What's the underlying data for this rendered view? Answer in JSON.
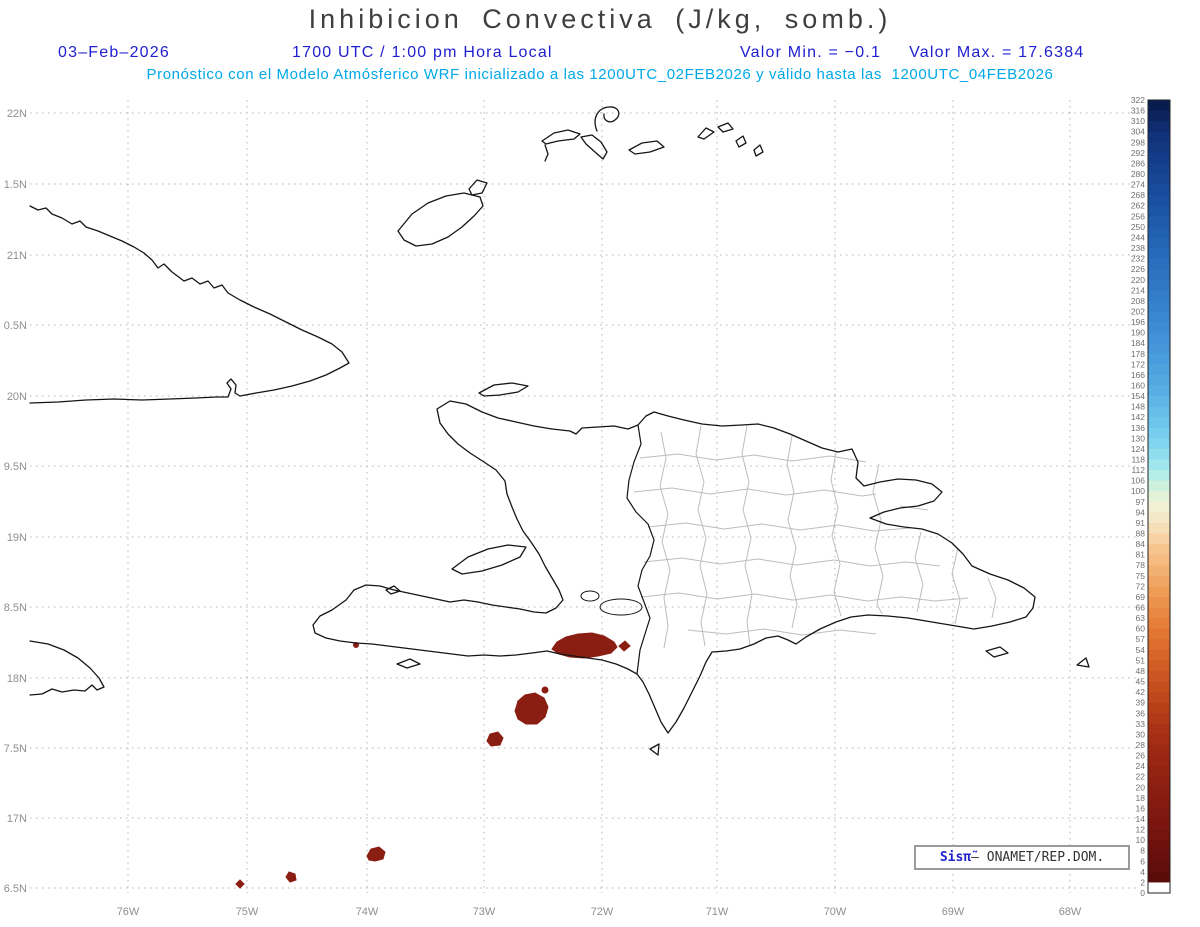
{
  "header": {
    "title": "Inhibicion Convectiva (J/kg, somb.)",
    "date": "03–Feb–2026",
    "time": "1700 UTC / 1:00 pm Hora Local",
    "min_label": "Valor Min. = −0.1",
    "max_label": "Valor Max. = 17.6384",
    "model_line": "Pronóstico con el Modelo Atmósferico WRF inicializado a las 1200UTC_02FEB2026 y válido hasta las  1200UTC_04FEB2026"
  },
  "axes": {
    "lat_ticks": [
      "22N",
      "1.5N",
      "21N",
      "0.5N",
      "20N",
      "9.5N",
      "19N",
      "8.5N",
      "18N",
      "7.5N",
      "17N",
      "6.5N"
    ],
    "lon_ticks": [
      "76W",
      "75W",
      "74W",
      "73W",
      "72W",
      "71W",
      "70W",
      "69W",
      "68W"
    ]
  },
  "colorbar": {
    "ticks": [
      322,
      316,
      310,
      304,
      298,
      292,
      286,
      280,
      274,
      268,
      262,
      256,
      250,
      244,
      238,
      232,
      226,
      220,
      214,
      208,
      202,
      196,
      190,
      184,
      178,
      172,
      166,
      160,
      154,
      148,
      142,
      136,
      130,
      124,
      118,
      112,
      106,
      100,
      97,
      94,
      91,
      88,
      84,
      81,
      78,
      75,
      72,
      69,
      66,
      63,
      60,
      57,
      54,
      51,
      48,
      45,
      42,
      39,
      36,
      33,
      30,
      28,
      26,
      24,
      22,
      20,
      18,
      16,
      14,
      12,
      10,
      8,
      6,
      4,
      2,
      0
    ],
    "white_below": 2,
    "stops": [
      [
        2,
        "#560b0b"
      ],
      [
        8,
        "#6b100d"
      ],
      [
        14,
        "#7d170f"
      ],
      [
        20,
        "#8b1e12"
      ],
      [
        26,
        "#9a2713"
      ],
      [
        30,
        "#a62f15"
      ],
      [
        36,
        "#b43c18"
      ],
      [
        42,
        "#c24a1c"
      ],
      [
        48,
        "#cf5922"
      ],
      [
        54,
        "#da682a"
      ],
      [
        60,
        "#e37a35"
      ],
      [
        66,
        "#ea8d46"
      ],
      [
        72,
        "#f0a15c"
      ],
      [
        78,
        "#f4b678"
      ],
      [
        84,
        "#f6ca96"
      ],
      [
        88,
        "#f6d9ae"
      ],
      [
        91,
        "#f5e3c0"
      ],
      [
        94,
        "#f3ecd0"
      ],
      [
        97,
        "#eef3d8"
      ],
      [
        100,
        "#d9f2d8"
      ],
      [
        106,
        "#c0efe2"
      ],
      [
        112,
        "#a9ebeb"
      ],
      [
        118,
        "#96e3ee"
      ],
      [
        124,
        "#86d9ee"
      ],
      [
        136,
        "#72c9ec"
      ],
      [
        148,
        "#62bae8"
      ],
      [
        160,
        "#55abe2"
      ],
      [
        178,
        "#479adb"
      ],
      [
        196,
        "#3b89d2"
      ],
      [
        214,
        "#317ac8"
      ],
      [
        232,
        "#286bbc"
      ],
      [
        250,
        "#205cae"
      ],
      [
        268,
        "#194d9e"
      ],
      [
        286,
        "#143f8c"
      ],
      [
        304,
        "#0f3078"
      ],
      [
        316,
        "#0a2055"
      ],
      [
        322,
        "#081747"
      ]
    ]
  },
  "credit": {
    "sis": "Sis",
    "pi": "π̃",
    "dash": "– ",
    "org": "ONAMET/REP.DOM."
  },
  "colors": {
    "header_blue": "#2020d0",
    "header_cyan": "#00a8e8",
    "title_gray": "#3f3f3f",
    "patch_red": "#8b1e12",
    "grid_gray": "#b5b5b5",
    "coast_black": "#151515",
    "province_gray": "#bdbdbd"
  }
}
